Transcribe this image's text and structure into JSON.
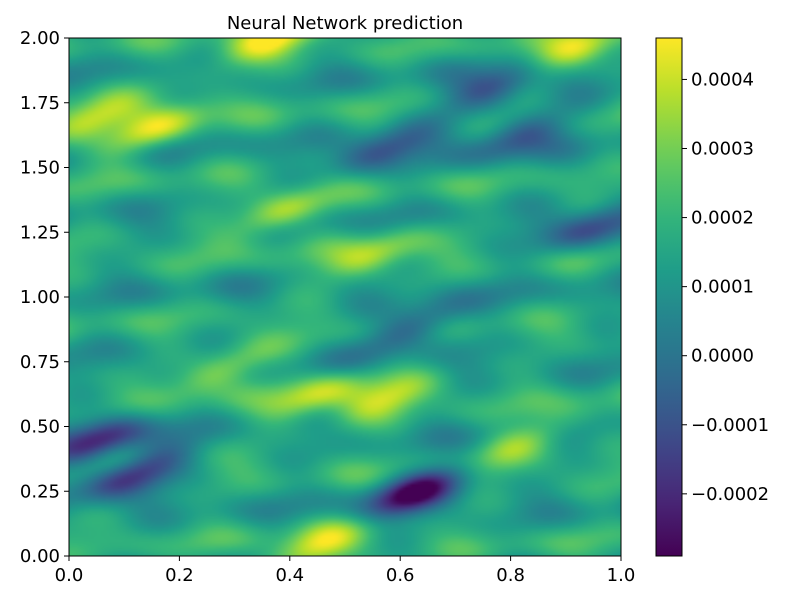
{
  "chart_data": {
    "type": "heatmap",
    "title": "Neural Network prediction",
    "xlabel": "",
    "ylabel": "",
    "xlim": [
      0.0,
      1.0
    ],
    "ylim": [
      0.0,
      2.0
    ],
    "xticks": [
      "0.0",
      "0.2",
      "0.4",
      "0.6",
      "0.8",
      "1.0"
    ],
    "yticks": [
      "0.00",
      "0.25",
      "0.50",
      "0.75",
      "1.00",
      "1.25",
      "1.50",
      "1.75",
      "2.00"
    ],
    "colormap": "viridis",
    "colorbar": {
      "range": [
        -0.00029,
        0.00046
      ],
      "ticks": [
        -0.0002,
        -0.0001,
        0.0,
        0.0001,
        0.0002,
        0.0003,
        0.0004
      ],
      "tick_labels": [
        "−0.0002",
        "−0.0001",
        "0.0000",
        "0.0001",
        "0.0002",
        "0.0003",
        "0.0004"
      ]
    },
    "grid": false,
    "features": {
      "highs": [
        {
          "x": 0.36,
          "y": 1.99,
          "value": 0.00045
        },
        {
          "x": 0.91,
          "y": 1.95,
          "value": 0.00045
        },
        {
          "x": 0.16,
          "y": 1.65,
          "value": 0.00042
        },
        {
          "x": 0.03,
          "y": 1.68,
          "value": 0.0004
        },
        {
          "x": 0.38,
          "y": 1.32,
          "value": 0.0004
        },
        {
          "x": 0.28,
          "y": 0.72,
          "value": 0.00037
        },
        {
          "x": 0.45,
          "y": 0.62,
          "value": 0.00037
        },
        {
          "x": 0.57,
          "y": 0.6,
          "value": 0.00036
        },
        {
          "x": 0.83,
          "y": 0.45,
          "value": 0.00036
        },
        {
          "x": 0.45,
          "y": 0.04,
          "value": 0.0004
        },
        {
          "x": 0.55,
          "y": 1.16,
          "value": 0.00036
        }
      ],
      "lows": [
        {
          "x": 0.63,
          "y": 0.25,
          "value": -0.00029
        },
        {
          "x": 0.12,
          "y": 0.32,
          "value": -0.00021
        },
        {
          "x": 0.05,
          "y": 0.44,
          "value": -0.00018
        },
        {
          "x": 0.78,
          "y": 1.82,
          "value": -0.00012
        },
        {
          "x": 0.62,
          "y": 0.88,
          "value": -0.00011
        },
        {
          "x": 0.57,
          "y": 1.57,
          "value": -0.0001
        },
        {
          "x": 0.95,
          "y": 1.27,
          "value": -0.0001
        },
        {
          "x": 0.82,
          "y": 1.63,
          "value": -9e-05
        }
      ]
    }
  }
}
